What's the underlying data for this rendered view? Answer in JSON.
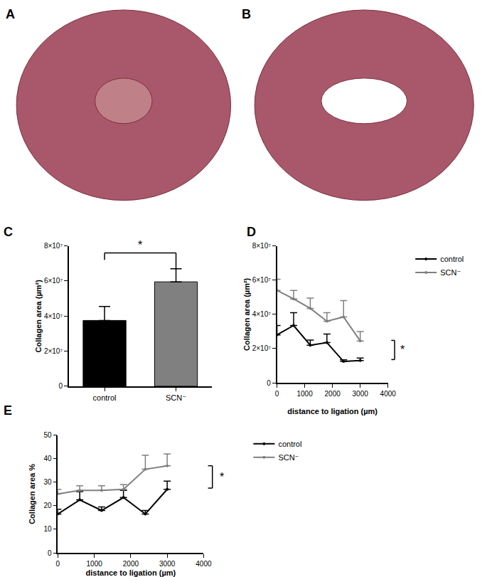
{
  "panels": [
    {
      "label": "A"
    },
    {
      "label": "B"
    }
  ],
  "chart_data": [
    {
      "title": "C",
      "type": "bar",
      "categories": [
        "control",
        "SCN⁻"
      ],
      "values": [
        37500000,
        59500000
      ],
      "errors": [
        8000000,
        7500000
      ],
      "colors": [
        "#000000",
        "#808080"
      ],
      "ylabel": "Collagen area (µm²)",
      "ylim": [
        0,
        80000000
      ],
      "yticks": [
        0,
        {
          "value": 20000000,
          "label": "2×10⁷"
        },
        {
          "value": 40000000,
          "label": "4×10⁷"
        },
        {
          "value": 60000000,
          "label": "6×10⁷"
        },
        {
          "value": 80000000,
          "label": "8×10⁷"
        }
      ],
      "grid": false,
      "annotations": [
        "*"
      ]
    },
    {
      "title": "D",
      "type": "line",
      "x": [
        0,
        600,
        1200,
        1800,
        2400,
        3000
      ],
      "series": [
        {
          "name": "control",
          "color": "#000000",
          "values": [
            28000000,
            33500000,
            22000000,
            23500000,
            12500000,
            13000000
          ],
          "errors": [
            5500000,
            7500000,
            3000000,
            5000000,
            1000000,
            1500000
          ]
        },
        {
          "name": "SCN⁻",
          "color": "#808080",
          "values": [
            54000000,
            49000000,
            43500000,
            36000000,
            38500000,
            24500000
          ],
          "errors": [
            6500000,
            5000000,
            6000000,
            5000000,
            9500000,
            5500000
          ]
        }
      ],
      "marker": "circle",
      "xlabel": "distance to ligation (µm)",
      "ylabel": "Collagen area (µm²)",
      "xlim": [
        0,
        4000
      ],
      "xticks": [
        0,
        1000,
        2000,
        3000,
        4000
      ],
      "ylim": [
        0,
        80000000
      ],
      "yticks": [
        0,
        {
          "value": 20000000,
          "label": "2×10⁷"
        },
        {
          "value": 40000000,
          "label": "4×10⁷"
        },
        {
          "value": 60000000,
          "label": "6×10⁷"
        },
        {
          "value": 80000000,
          "label": "8×10⁷"
        }
      ],
      "grid": false,
      "legend": "right",
      "annotations": [
        "*"
      ]
    },
    {
      "title": "E",
      "type": "line",
      "x": [
        0,
        600,
        1200,
        1800,
        2400,
        3000
      ],
      "series": [
        {
          "name": "control",
          "color": "#000000",
          "values": [
            16.5,
            22.5,
            18,
            23.5,
            16.5,
            27
          ],
          "errors": [
            2,
            3.5,
            1.5,
            3,
            1.5,
            3.5
          ]
        },
        {
          "name": "SCN⁻",
          "color": "#808080",
          "values": [
            25,
            26.5,
            26.5,
            27,
            35.5,
            37
          ],
          "errors": [
            2,
            2,
            2,
            2,
            6,
            5
          ]
        }
      ],
      "marker": "circle",
      "xlabel": "distance to ligation (µm)",
      "ylabel": "Collagen area %",
      "xlim": [
        0,
        4000
      ],
      "xticks": [
        0,
        1000,
        2000,
        3000,
        4000
      ],
      "ylim": [
        0,
        50
      ],
      "yticks": [
        0,
        10,
        20,
        30,
        40,
        50
      ],
      "grid": false,
      "legend": "right",
      "annotations": [
        "*"
      ]
    }
  ]
}
